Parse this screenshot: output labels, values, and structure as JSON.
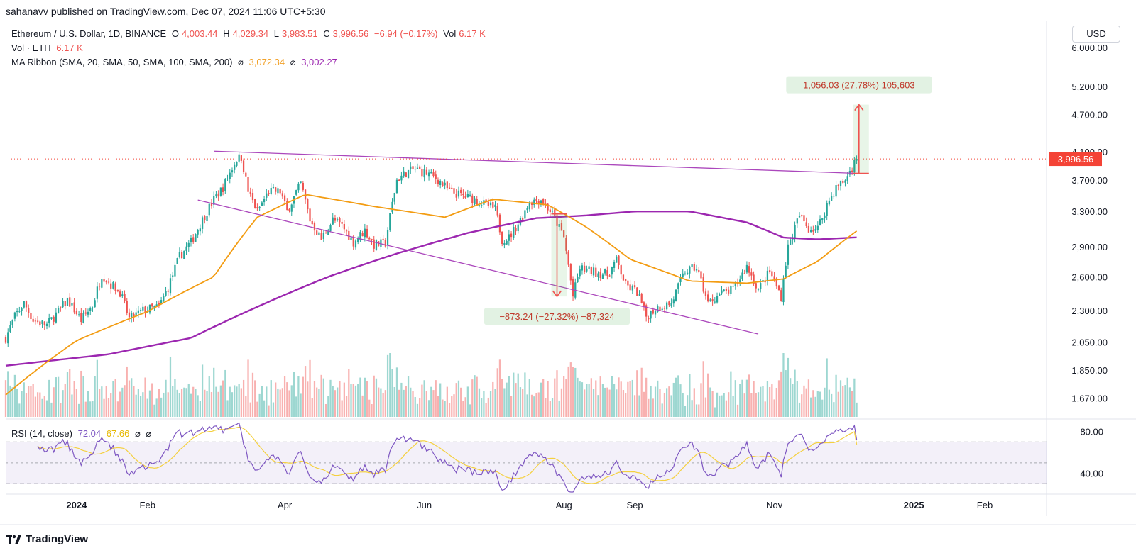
{
  "publisher": "sahanavv published on TradingView.com, Dec 07, 2024 11:06 UTC+5:30",
  "legend": {
    "symbol": "Ethereum / U.S. Dollar, 1D, BINANCE",
    "o_label": "O",
    "o_value": "4,003.44",
    "h_label": "H",
    "h_value": "4,029.34",
    "l_label": "L",
    "l_value": "3,983.51",
    "c_label": "C",
    "c_value": "3,996.56",
    "change": "−6.94 (−0.17%)",
    "vol_label": "Vol",
    "vol_value": "6.17 K",
    "vol_line_label": "Vol · ETH",
    "vol_line_value": "6.17 K",
    "ma_label": "MA Ribbon (SMA, 20, SMA, 50, SMA, 100, SMA, 200)",
    "ma_sep1": "⌀",
    "ma_value1": "3,072.34",
    "ma_sep2": "⌀",
    "ma_value2": "3,002.27",
    "rsi_label": "RSI (14, close)",
    "rsi_value": "72.04",
    "rsi_ma_value": "67.66",
    "rsi_sep1": "⌀",
    "rsi_sep2": "⌀"
  },
  "currency_button": "USD",
  "footer_brand": "TradingView",
  "colors": {
    "up": "#26a69a",
    "down": "#ef5350",
    "ma_short": "#f39c12",
    "ma_long": "#9c27b0",
    "trendline": "#ab47bc",
    "rsi": "#7e57c2",
    "rsi_ma": "#f4d03f",
    "price_label": "#f44336"
  },
  "chart_data": {
    "type": "candlestick",
    "symbol": "ETHUSD",
    "interval": "1D",
    "x_range": [
      "2023-12-01",
      "2025-02-28"
    ],
    "x_ticks": [
      {
        "date": "2024-01-01",
        "label": "2024"
      },
      {
        "date": "2024-02-01",
        "label": "Feb"
      },
      {
        "date": "2024-04-01",
        "label": "Apr"
      },
      {
        "date": "2024-06-01",
        "label": "Jun"
      },
      {
        "date": "2024-08-01",
        "label": "Aug"
      },
      {
        "date": "2024-09-01",
        "label": "Sep"
      },
      {
        "date": "2024-11-01",
        "label": "Nov"
      },
      {
        "date": "2025-01-01",
        "label": "2025"
      },
      {
        "date": "2025-02-01",
        "label": "Feb"
      }
    ],
    "y_scale": "log",
    "y_range": [
      1560,
      6600
    ],
    "y_ticks": [
      "6,000.00",
      "5,200.00",
      "4,700.00",
      "4,100.00",
      "3,700.00",
      "3,300.00",
      "2,900.00",
      "2,600.00",
      "2,300.00",
      "2,050.00",
      "1,850.00",
      "1,670.00"
    ],
    "last_price": "3,996.56",
    "price_anchors": [
      [
        "2023-12-01",
        2080
      ],
      [
        "2023-12-05",
        2250
      ],
      [
        "2023-12-09",
        2360
      ],
      [
        "2023-12-13",
        2220
      ],
      [
        "2023-12-19",
        2180
      ],
      [
        "2023-12-24",
        2290
      ],
      [
        "2023-12-28",
        2390
      ],
      [
        "2024-01-03",
        2220
      ],
      [
        "2024-01-08",
        2340
      ],
      [
        "2024-01-12",
        2620
      ],
      [
        "2024-01-16",
        2530
      ],
      [
        "2024-01-20",
        2460
      ],
      [
        "2024-01-24",
        2230
      ],
      [
        "2024-01-30",
        2300
      ],
      [
        "2024-02-06",
        2330
      ],
      [
        "2024-02-10",
        2500
      ],
      [
        "2024-02-15",
        2800
      ],
      [
        "2024-02-20",
        2950
      ],
      [
        "2024-02-26",
        3250
      ],
      [
        "2024-03-01",
        3450
      ],
      [
        "2024-03-05",
        3600
      ],
      [
        "2024-03-11",
        4000
      ],
      [
        "2024-03-13",
        4020
      ],
      [
        "2024-03-16",
        3550
      ],
      [
        "2024-03-20",
        3300
      ],
      [
        "2024-03-25",
        3550
      ],
      [
        "2024-03-30",
        3550
      ],
      [
        "2024-04-02",
        3300
      ],
      [
        "2024-04-08",
        3650
      ],
      [
        "2024-04-12",
        3200
      ],
      [
        "2024-04-17",
        2980
      ],
      [
        "2024-04-22",
        3200
      ],
      [
        "2024-04-26",
        3130
      ],
      [
        "2024-05-01",
        2950
      ],
      [
        "2024-05-06",
        3080
      ],
      [
        "2024-05-10",
        2920
      ],
      [
        "2024-05-15",
        2940
      ],
      [
        "2024-05-20",
        3700
      ],
      [
        "2024-05-24",
        3800
      ],
      [
        "2024-05-28",
        3850
      ],
      [
        "2024-06-03",
        3780
      ],
      [
        "2024-06-07",
        3700
      ],
      [
        "2024-06-12",
        3550
      ],
      [
        "2024-06-17",
        3500
      ],
      [
        "2024-06-22",
        3460
      ],
      [
        "2024-06-27",
        3390
      ],
      [
        "2024-07-02",
        3330
      ],
      [
        "2024-07-05",
        2980
      ],
      [
        "2024-07-08",
        3000
      ],
      [
        "2024-07-13",
        3200
      ],
      [
        "2024-07-17",
        3420
      ],
      [
        "2024-07-22",
        3450
      ],
      [
        "2024-07-27",
        3270
      ],
      [
        "2024-08-01",
        3000
      ],
      [
        "2024-08-05",
        2420
      ],
      [
        "2024-08-08",
        2680
      ],
      [
        "2024-08-14",
        2650
      ],
      [
        "2024-08-20",
        2620
      ],
      [
        "2024-08-24",
        2760
      ],
      [
        "2024-08-28",
        2520
      ],
      [
        "2024-09-02",
        2460
      ],
      [
        "2024-09-06",
        2250
      ],
      [
        "2024-09-11",
        2330
      ],
      [
        "2024-09-17",
        2360
      ],
      [
        "2024-09-23",
        2650
      ],
      [
        "2024-09-28",
        2690
      ],
      [
        "2024-10-03",
        2360
      ],
      [
        "2024-10-08",
        2440
      ],
      [
        "2024-10-14",
        2480
      ],
      [
        "2024-10-20",
        2700
      ],
      [
        "2024-10-25",
        2480
      ],
      [
        "2024-10-30",
        2650
      ],
      [
        "2024-11-04",
        2420
      ],
      [
        "2024-11-07",
        2900
      ],
      [
        "2024-11-12",
        3250
      ],
      [
        "2024-11-16",
        3100
      ],
      [
        "2024-11-20",
        3100
      ],
      [
        "2024-11-24",
        3380
      ],
      [
        "2024-11-28",
        3600
      ],
      [
        "2024-12-02",
        3700
      ],
      [
        "2024-12-07",
        3997
      ]
    ],
    "ma_short_anchors": [
      [
        "2023-12-01",
        1690
      ],
      [
        "2024-01-01",
        2060
      ],
      [
        "2024-02-01",
        2290
      ],
      [
        "2024-03-01",
        2600
      ],
      [
        "2024-03-20",
        3230
      ],
      [
        "2024-04-10",
        3510
      ],
      [
        "2024-05-10",
        3360
      ],
      [
        "2024-06-10",
        3230
      ],
      [
        "2024-07-01",
        3450
      ],
      [
        "2024-07-25",
        3380
      ],
      [
        "2024-08-10",
        3130
      ],
      [
        "2024-08-30",
        2770
      ],
      [
        "2024-09-25",
        2560
      ],
      [
        "2024-10-20",
        2540
      ],
      [
        "2024-11-05",
        2580
      ],
      [
        "2024-11-20",
        2750
      ],
      [
        "2024-12-07",
        3072
      ]
    ],
    "ma_long_anchors": [
      [
        "2023-12-01",
        1880
      ],
      [
        "2024-01-15",
        1960
      ],
      [
        "2024-02-20",
        2080
      ],
      [
        "2024-03-20",
        2330
      ],
      [
        "2024-04-20",
        2600
      ],
      [
        "2024-05-20",
        2830
      ],
      [
        "2024-06-20",
        3050
      ],
      [
        "2024-07-20",
        3220
      ],
      [
        "2024-08-10",
        3250
      ],
      [
        "2024-09-01",
        3300
      ],
      [
        "2024-09-25",
        3300
      ],
      [
        "2024-10-20",
        3170
      ],
      [
        "2024-11-05",
        3000
      ],
      [
        "2024-11-20",
        2980
      ],
      [
        "2024-12-07",
        3002
      ]
    ],
    "trendlines": [
      {
        "from": [
          "2024-03-01",
          4110
        ],
        "to": [
          "2024-12-08",
          3790
        ]
      },
      {
        "from": [
          "2024-02-23",
          3440
        ],
        "to": [
          "2024-10-25",
          2110
        ]
      }
    ],
    "measurements": [
      {
        "label": "−873.24 (−27.32%) −87,324",
        "from": [
          "2024-07-29",
          3270
        ],
        "to": [
          "2024-07-29",
          2420
        ]
      },
      {
        "label": "1,056.03 (27.78%) 105,603",
        "from": [
          "2024-12-08",
          3790
        ],
        "to": [
          "2024-12-08",
          4870
        ]
      }
    ],
    "rsi": {
      "y_ticks": [
        "80.00",
        "40.00"
      ],
      "upper_band": 70,
      "lower_band": 30,
      "mid_band": 50,
      "y_range": [
        22,
        90
      ],
      "last": 72.04,
      "ma_last": 67.66
    }
  }
}
